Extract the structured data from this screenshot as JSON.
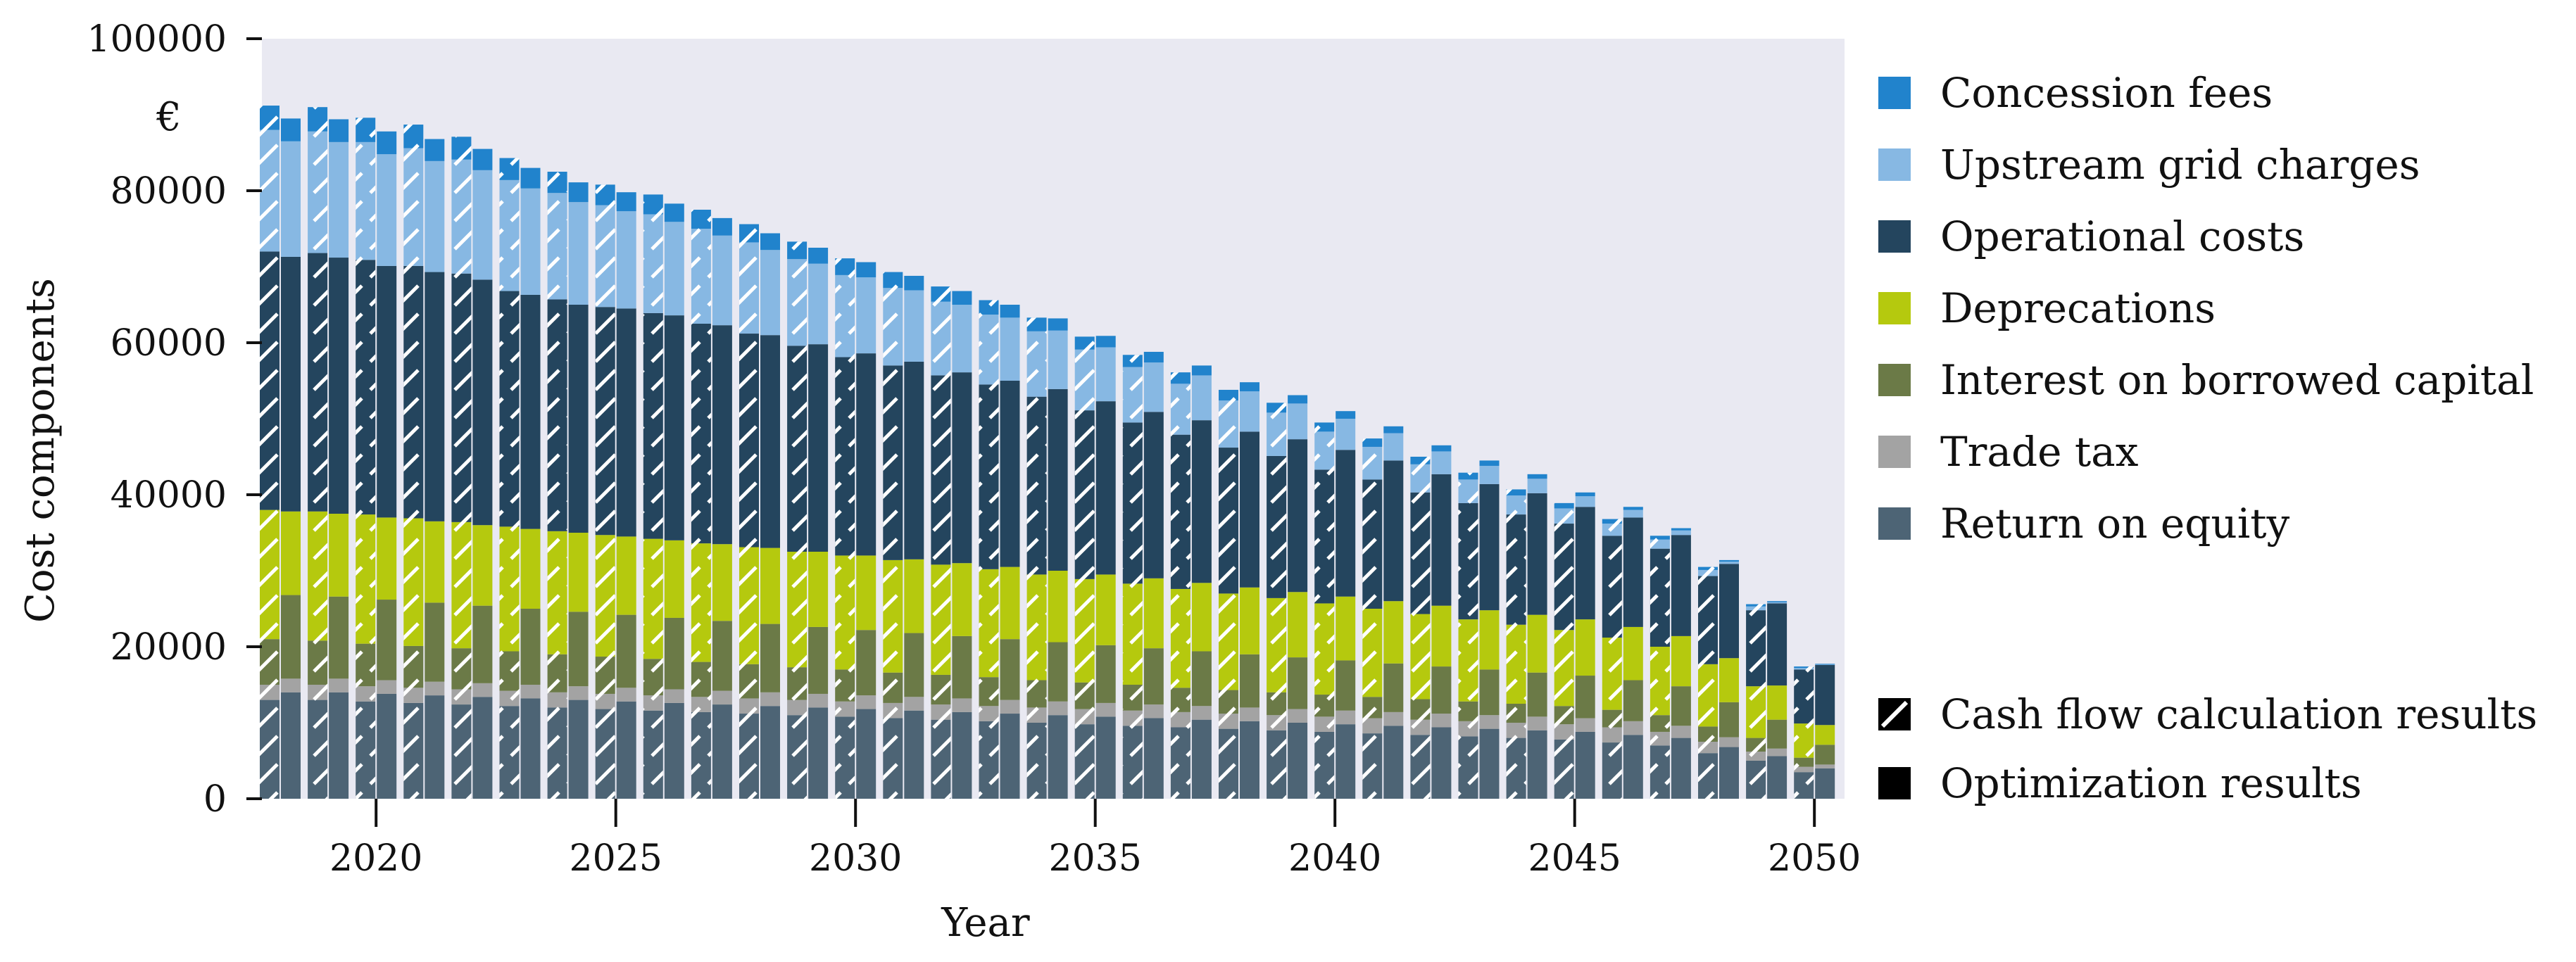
{
  "chart_data": {
    "type": "bar",
    "stacked": true,
    "title": "",
    "xlabel": "Year",
    "ylabel": "Cost components",
    "y_unit": "€",
    "ylim": [
      0,
      100000
    ],
    "y_ticks": [
      0,
      20000,
      40000,
      60000,
      80000,
      100000
    ],
    "y_tick_labels": [
      "0",
      "20000",
      "40000",
      "60000",
      "80000",
      "100000"
    ],
    "x_ticks": [
      2020,
      2025,
      2030,
      2035,
      2040,
      2045,
      2050
    ],
    "x_tick_labels": [
      "2020",
      "2025",
      "2030",
      "2035",
      "2040",
      "2045",
      "2050"
    ],
    "categories": [
      2018,
      2019,
      2020,
      2021,
      2022,
      2023,
      2024,
      2025,
      2026,
      2027,
      2028,
      2029,
      2030,
      2031,
      2032,
      2033,
      2034,
      2035,
      2036,
      2037,
      2038,
      2039,
      2040,
      2041,
      2042,
      2043,
      2044,
      2045,
      2046,
      2047,
      2048,
      2049,
      2050
    ],
    "pair_note": "Each year shows two adjacent stacked bars: cash flow calculation results (hatched, left) and optimization results (solid, right).",
    "series": [
      {
        "name": "Return on equity",
        "color": "#4d6475",
        "cashflow": [
          13000,
          13000,
          12800,
          12600,
          12400,
          12200,
          12000,
          11800,
          11600,
          11400,
          11200,
          11000,
          10800,
          10600,
          10400,
          10200,
          10000,
          9800,
          9600,
          9400,
          9200,
          9000,
          8800,
          8600,
          8400,
          8200,
          8000,
          7800,
          7400,
          7000,
          6000,
          5000,
          3500
        ],
        "optimization": [
          14000,
          14000,
          13800,
          13600,
          13400,
          13200,
          13000,
          12800,
          12600,
          12400,
          12200,
          12000,
          11800,
          11600,
          11400,
          11200,
          11000,
          10800,
          10600,
          10400,
          10200,
          10000,
          9800,
          9600,
          9400,
          9200,
          9000,
          8800,
          8400,
          8000,
          6800,
          5600,
          4000
        ]
      },
      {
        "name": "Trade tax",
        "color": "#a3a3a3",
        "cashflow": [
          2000,
          2000,
          2000,
          2000,
          2000,
          2000,
          2000,
          2000,
          2000,
          2000,
          2000,
          2000,
          2000,
          2000,
          2000,
          2000,
          2000,
          2000,
          2000,
          2000,
          2000,
          2000,
          2000,
          2000,
          2000,
          2000,
          2000,
          2000,
          2000,
          1800,
          1500,
          1200,
          700
        ],
        "optimization": [
          1800,
          1800,
          1800,
          1800,
          1800,
          1800,
          1800,
          1800,
          1800,
          1800,
          1800,
          1800,
          1800,
          1800,
          1800,
          1800,
          1800,
          1800,
          1800,
          1800,
          1800,
          1800,
          1800,
          1800,
          1800,
          1800,
          1800,
          1800,
          1800,
          1600,
          1300,
          1000,
          500
        ]
      },
      {
        "name": "Interest on borrowed capital",
        "color": "#6b7a47",
        "cashflow": [
          6000,
          5800,
          5600,
          5500,
          5400,
          5200,
          5000,
          4900,
          4800,
          4600,
          4500,
          4300,
          4200,
          4000,
          3900,
          3800,
          3600,
          3500,
          3400,
          3200,
          3100,
          3000,
          2900,
          2800,
          2700,
          2600,
          2500,
          2400,
          2300,
          2200,
          2000,
          1800,
          1200
        ],
        "optimization": [
          11000,
          10800,
          10600,
          10400,
          10200,
          10000,
          9800,
          9600,
          9400,
          9200,
          9000,
          8800,
          8600,
          8400,
          8200,
          8000,
          7800,
          7600,
          7400,
          7200,
          7000,
          6800,
          6600,
          6400,
          6200,
          6000,
          5800,
          5600,
          5400,
          5200,
          4600,
          3800,
          2600
        ]
      },
      {
        "name": "Deprecations",
        "color": "#b5c90e",
        "cashflow": [
          17000,
          17000,
          17000,
          16800,
          16600,
          16400,
          16200,
          16000,
          15800,
          15600,
          15400,
          15200,
          15000,
          14800,
          14500,
          14200,
          13900,
          13600,
          13300,
          13000,
          12700,
          12400,
          12000,
          11600,
          11200,
          10800,
          10400,
          10000,
          9500,
          9000,
          8200,
          6800,
          4500
        ],
        "optimization": [
          11000,
          10900,
          10800,
          10700,
          10600,
          10500,
          10400,
          10300,
          10200,
          10100,
          10000,
          9900,
          9800,
          9700,
          9600,
          9500,
          9400,
          9300,
          9200,
          9000,
          8800,
          8600,
          8400,
          8200,
          8000,
          7800,
          7600,
          7400,
          7000,
          6600,
          5800,
          4500,
          2600
        ]
      },
      {
        "name": "Operational costs",
        "color": "#24455e",
        "cashflow": [
          34000,
          34000,
          33500,
          33200,
          32700,
          31000,
          30500,
          30000,
          29700,
          28900,
          28100,
          27100,
          26100,
          25600,
          24900,
          24300,
          23400,
          22200,
          21200,
          20300,
          19200,
          18700,
          17600,
          17000,
          16000,
          15300,
          14500,
          14000,
          13400,
          12900,
          11600,
          10000,
          7100
        ],
        "optimization": [
          33500,
          33700,
          33100,
          32800,
          32300,
          30800,
          30000,
          30000,
          29600,
          28800,
          28000,
          27300,
          26600,
          26000,
          25100,
          24500,
          23900,
          22800,
          21900,
          21400,
          20500,
          20100,
          19300,
          18500,
          17300,
          16600,
          16000,
          14800,
          14400,
          13300,
          12400,
          10800,
          7900
        ]
      },
      {
        "name": "Upstream grid charges",
        "color": "#87b8e3",
        "cashflow": [
          16000,
          16000,
          15500,
          15500,
          15000,
          14600,
          14000,
          13400,
          13000,
          12500,
          12000,
          11400,
          10800,
          10200,
          9700,
          9200,
          8600,
          8000,
          7300,
          6700,
          6200,
          5700,
          5000,
          4300,
          3700,
          3100,
          2500,
          2000,
          1600,
          1200,
          800,
          500,
          200
        ],
        "optimization": [
          15200,
          15200,
          14700,
          14600,
          14400,
          14000,
          13500,
          12800,
          12300,
          11800,
          11200,
          10600,
          10000,
          9400,
          8900,
          8300,
          7700,
          7100,
          6500,
          5900,
          5300,
          4700,
          4100,
          3600,
          3000,
          2400,
          1900,
          1400,
          1000,
          600,
          300,
          150,
          50
        ]
      },
      {
        "name": "Concession fees",
        "color": "#2183cc",
        "cashflow": [
          3200,
          3200,
          3200,
          3100,
          3000,
          2900,
          2800,
          2700,
          2600,
          2500,
          2400,
          2300,
          2200,
          2100,
          2000,
          1900,
          1800,
          1700,
          1600,
          1500,
          1400,
          1300,
          1200,
          1100,
          1000,
          900,
          800,
          700,
          600,
          500,
          400,
          300,
          200
        ],
        "optimization": [
          3000,
          3000,
          3000,
          2900,
          2800,
          2700,
          2600,
          2500,
          2400,
          2300,
          2200,
          2100,
          2000,
          1900,
          1800,
          1700,
          1600,
          1500,
          1400,
          1300,
          1200,
          1100,
          1000,
          900,
          800,
          700,
          600,
          500,
          400,
          300,
          200,
          150,
          100
        ]
      }
    ],
    "legend": {
      "position": "right",
      "components_order": [
        "Concession fees",
        "Upstream grid charges",
        "Operational costs",
        "Deprecations",
        "Interest on borrowed capital",
        "Trade tax",
        "Return on equity"
      ],
      "methods": [
        {
          "name": "Cash flow calculation results",
          "style": "hatched"
        },
        {
          "name": "Optimization results",
          "style": "solid"
        }
      ]
    },
    "background": "#e9e9f2",
    "grid": false
  }
}
